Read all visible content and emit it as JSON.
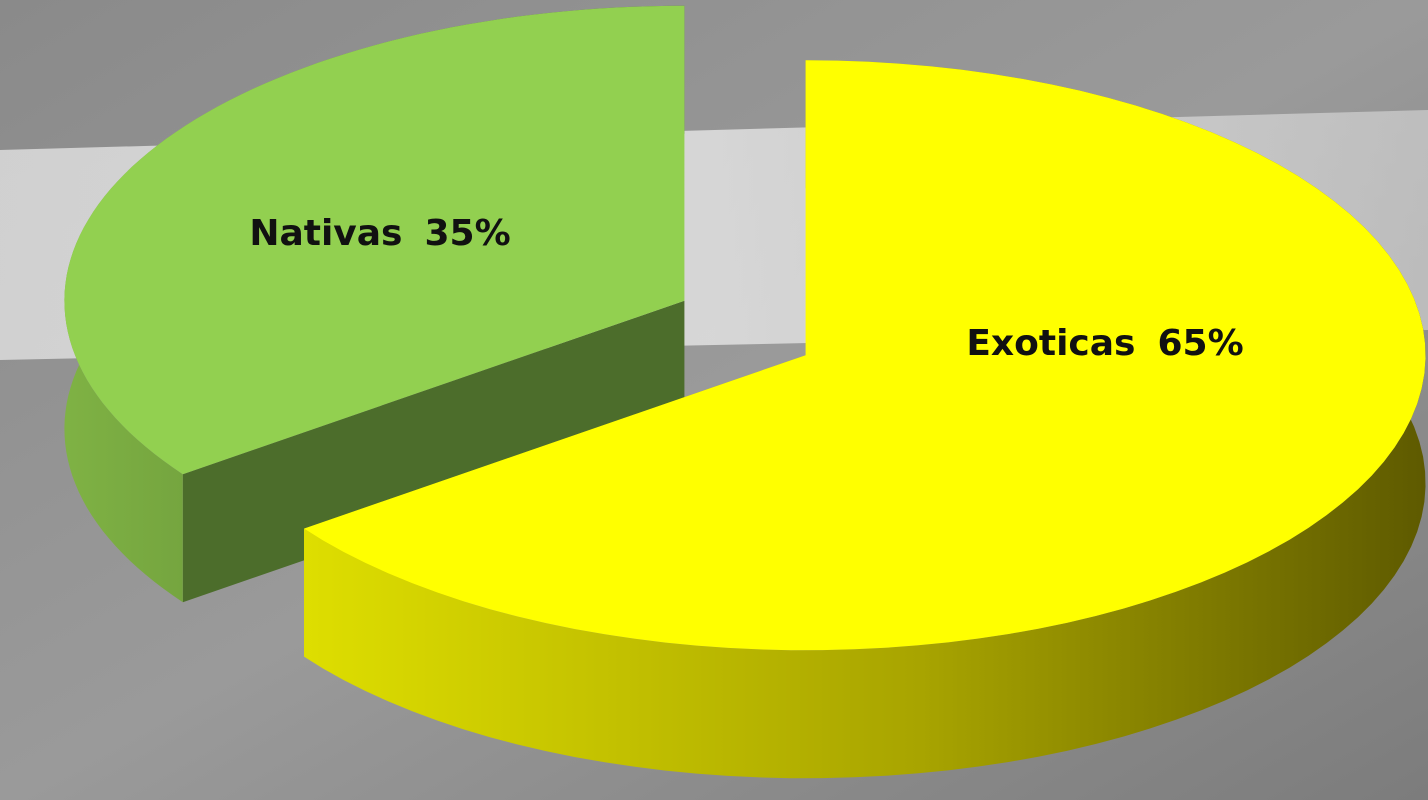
{
  "chart_data": {
    "type": "pie3d",
    "categories": [
      "Nativas",
      "Exoticas"
    ],
    "values": [
      35,
      65
    ],
    "value_labels": [
      "35%",
      "65%"
    ],
    "colors": [
      "#92d050",
      "#ffff00"
    ]
  }
}
